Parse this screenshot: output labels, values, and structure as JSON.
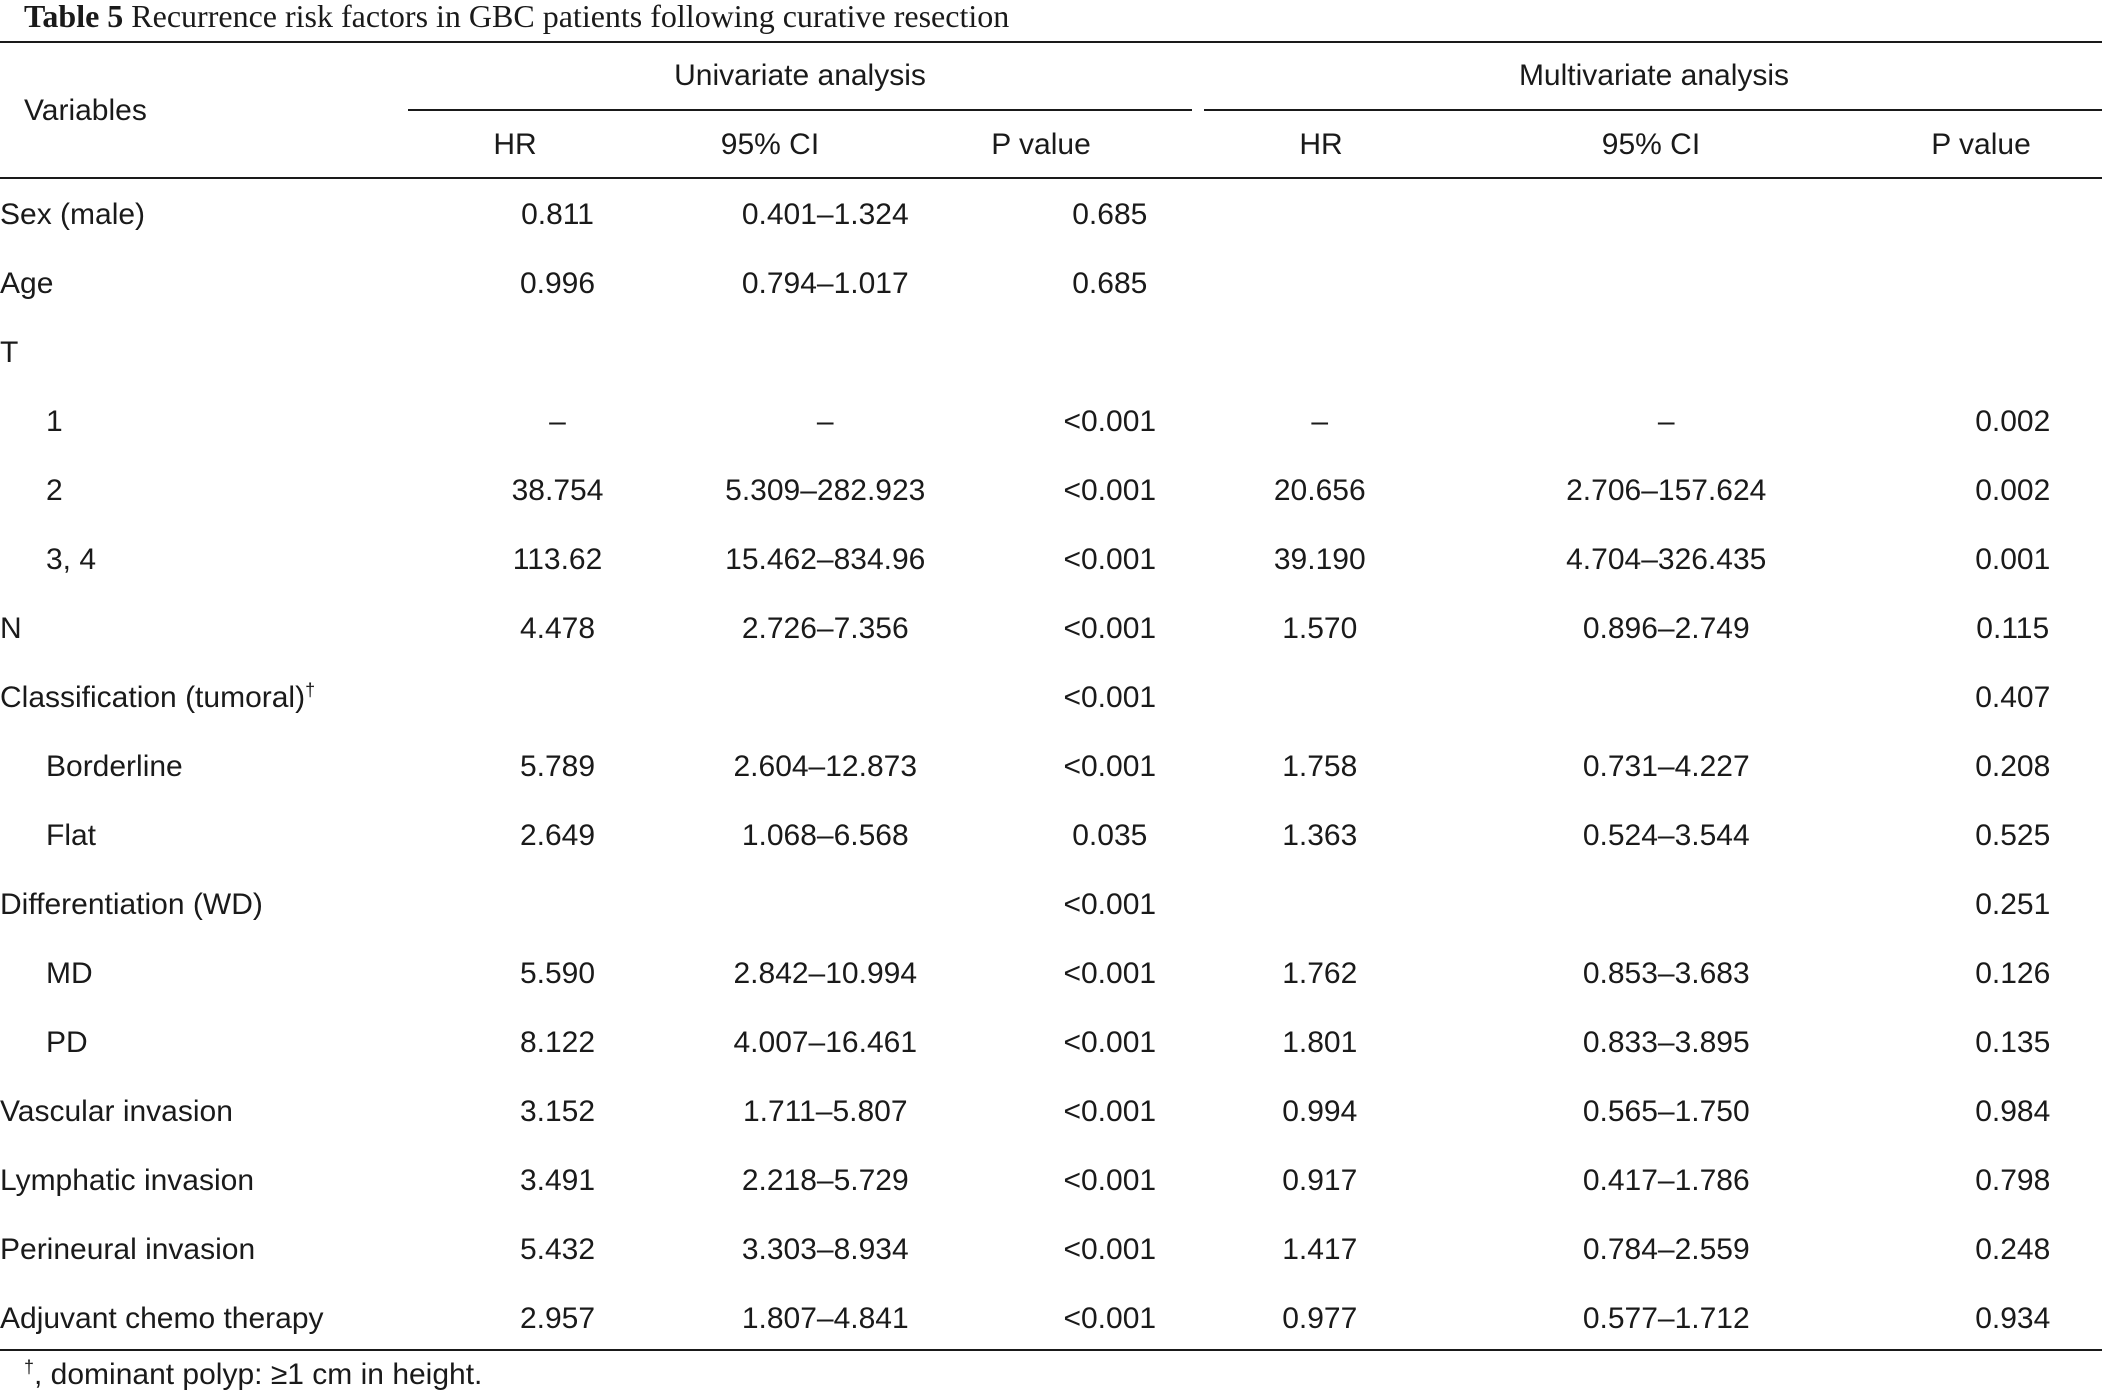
{
  "caption": {
    "label": "Table 5",
    "text": "Recurrence risk factors in GBC patients following curative resection"
  },
  "header": {
    "variables": "Variables",
    "univariate": "Univariate analysis",
    "multivariate": "Multivariate analysis",
    "hr": "HR",
    "ci": "95% CI",
    "p": "P value"
  },
  "rows": [
    {
      "variable": "Sex (male)",
      "indent": false,
      "u_hr": "0.811",
      "u_ci": "0.401–1.324",
      "u_p": "0.685",
      "m_hr": "",
      "m_ci": "",
      "m_p": ""
    },
    {
      "variable": "Age",
      "indent": false,
      "u_hr": "0.996",
      "u_ci": "0.794–1.017",
      "u_p": "0.685",
      "m_hr": "",
      "m_ci": "",
      "m_p": ""
    },
    {
      "variable": "T",
      "indent": false,
      "u_hr": "",
      "u_ci": "",
      "u_p": "",
      "m_hr": "",
      "m_ci": "",
      "m_p": ""
    },
    {
      "variable": "1",
      "indent": true,
      "u_hr": "–",
      "u_ci": "–",
      "u_p": "<0.001",
      "m_hr": "–",
      "m_ci": "–",
      "m_p": "0.002"
    },
    {
      "variable": "2",
      "indent": true,
      "u_hr": "38.754",
      "u_ci": "5.309–282.923",
      "u_p": "<0.001",
      "m_hr": "20.656",
      "m_ci": "2.706–157.624",
      "m_p": "0.002"
    },
    {
      "variable": "3, 4",
      "indent": true,
      "u_hr": "113.62",
      "u_ci": "15.462–834.96",
      "u_p": "<0.001",
      "m_hr": "39.190",
      "m_ci": "4.704–326.435",
      "m_p": "0.001"
    },
    {
      "variable": "N",
      "indent": false,
      "u_hr": "4.478",
      "u_ci": "2.726–7.356",
      "u_p": "<0.001",
      "m_hr": "1.570",
      "m_ci": "0.896–2.749",
      "m_p": "0.115"
    },
    {
      "variable": "Classification (tumoral)",
      "sup": "†",
      "indent": false,
      "u_hr": "",
      "u_ci": "",
      "u_p": "<0.001",
      "m_hr": "",
      "m_ci": "",
      "m_p": "0.407"
    },
    {
      "variable": "Borderline",
      "indent": true,
      "u_hr": "5.789",
      "u_ci": "2.604–12.873",
      "u_p": "<0.001",
      "m_hr": "1.758",
      "m_ci": "0.731–4.227",
      "m_p": "0.208"
    },
    {
      "variable": "Flat",
      "indent": true,
      "u_hr": "2.649",
      "u_ci": "1.068–6.568",
      "u_p": "0.035",
      "m_hr": "1.363",
      "m_ci": "0.524–3.544",
      "m_p": "0.525"
    },
    {
      "variable": "Differentiation (WD)",
      "indent": false,
      "u_hr": "",
      "u_ci": "",
      "u_p": "<0.001",
      "m_hr": "",
      "m_ci": "",
      "m_p": "0.251"
    },
    {
      "variable": "MD",
      "indent": true,
      "u_hr": "5.590",
      "u_ci": "2.842–10.994",
      "u_p": "<0.001",
      "m_hr": "1.762",
      "m_ci": "0.853–3.683",
      "m_p": "0.126"
    },
    {
      "variable": "PD",
      "indent": true,
      "u_hr": "8.122",
      "u_ci": "4.007–16.461",
      "u_p": "<0.001",
      "m_hr": "1.801",
      "m_ci": "0.833–3.895",
      "m_p": "0.135"
    },
    {
      "variable": "Vascular invasion",
      "indent": false,
      "u_hr": "3.152",
      "u_ci": "1.711–5.807",
      "u_p": "<0.001",
      "m_hr": "0.994",
      "m_ci": "0.565–1.750",
      "m_p": "0.984"
    },
    {
      "variable": "Lymphatic invasion",
      "indent": false,
      "u_hr": "3.491",
      "u_ci": "2.218–5.729",
      "u_p": "<0.001",
      "m_hr": "0.917",
      "m_ci": "0.417–1.786",
      "m_p": "0.798"
    },
    {
      "variable": "Perineural invasion",
      "indent": false,
      "u_hr": "5.432",
      "u_ci": "3.303–8.934",
      "u_p": "<0.001",
      "m_hr": "1.417",
      "m_ci": "0.784–2.559",
      "m_p": "0.248"
    },
    {
      "variable": "Adjuvant chemo therapy",
      "indent": false,
      "u_hr": "2.957",
      "u_ci": "1.807–4.841",
      "u_p": "<0.001",
      "m_hr": "0.977",
      "m_ci": "0.577–1.712",
      "m_p": "0.934"
    }
  ],
  "footnote": {
    "mark": "†",
    "text": ", dominant polyp: ≥1 cm in height."
  }
}
